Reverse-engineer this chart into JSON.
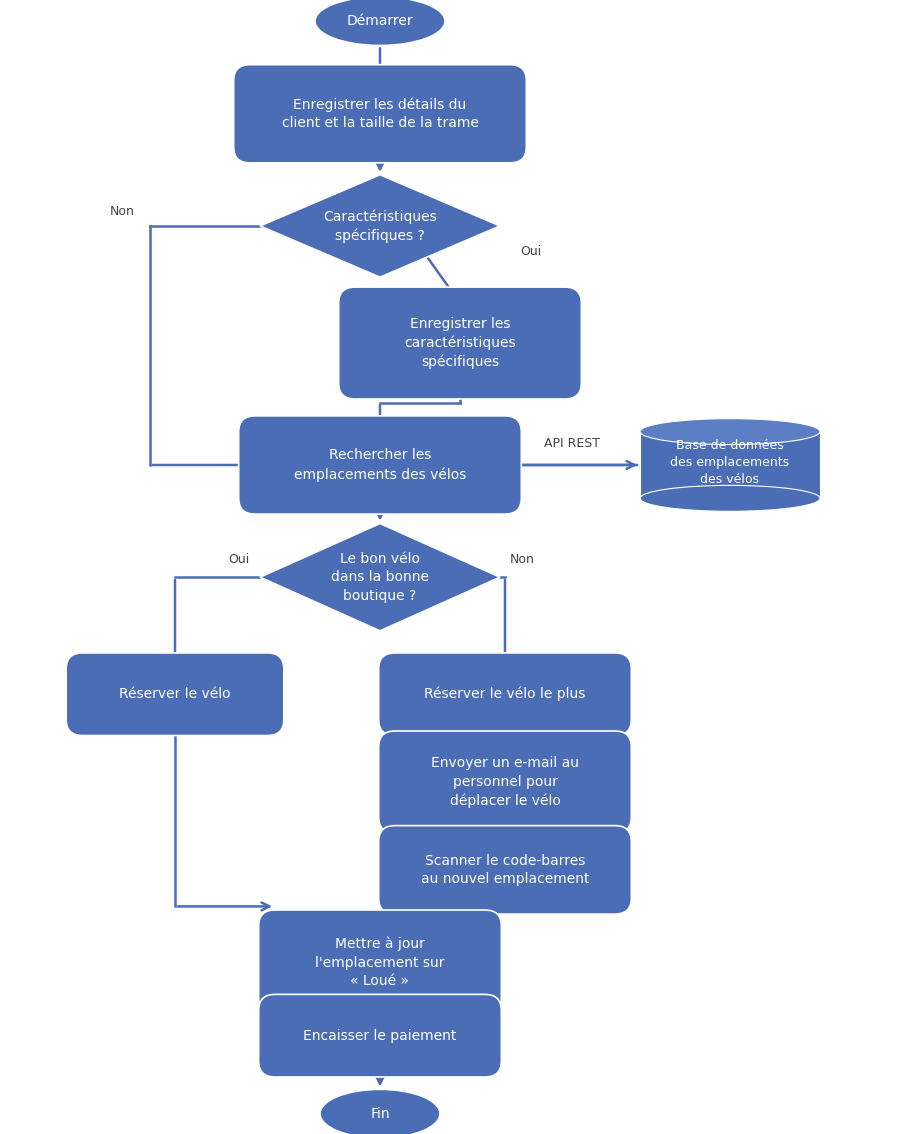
{
  "bg_color": "#ffffff",
  "box_fill": "#4a6db5",
  "box_fill2": "#5b7ec5",
  "text_color": "#ffffff",
  "arrow_color": "#4a6db5",
  "label_color": "#444444",
  "font_size": 10,
  "font_size_small": 9,
  "nodes": {
    "start": {
      "label": "Démarrer"
    },
    "box1": {
      "label": "Enregistrer les détails du\nclient et la taille de la trame"
    },
    "d1": {
      "label": "Caractéristiques\nspécifiques ?"
    },
    "box2": {
      "label": "Enregistrer les\ncaractéristiques\nspécifiques"
    },
    "box3": {
      "label": "Rechercher les\nemplacements des vélos"
    },
    "db": {
      "label": "Base de données\ndes emplacements\ndes vélos"
    },
    "d2": {
      "label": "Le bon vélo\ndans la bonne\nboutique ?"
    },
    "box4": {
      "label": "Réserver le vélo"
    },
    "box5": {
      "label": "Réserver le vélo le plus"
    },
    "box6": {
      "label": "Envoyer un e-mail au\npersonnel pour\ndéplacer le vélo"
    },
    "box7": {
      "label": "Scanner le code-barres\nau nouvel emplacement"
    },
    "box8": {
      "label": "Mettre à jour\nl'emplacement sur\n« Loué »"
    },
    "box9": {
      "label": "Encaisser le paiement"
    },
    "end": {
      "label": "Fin"
    }
  }
}
